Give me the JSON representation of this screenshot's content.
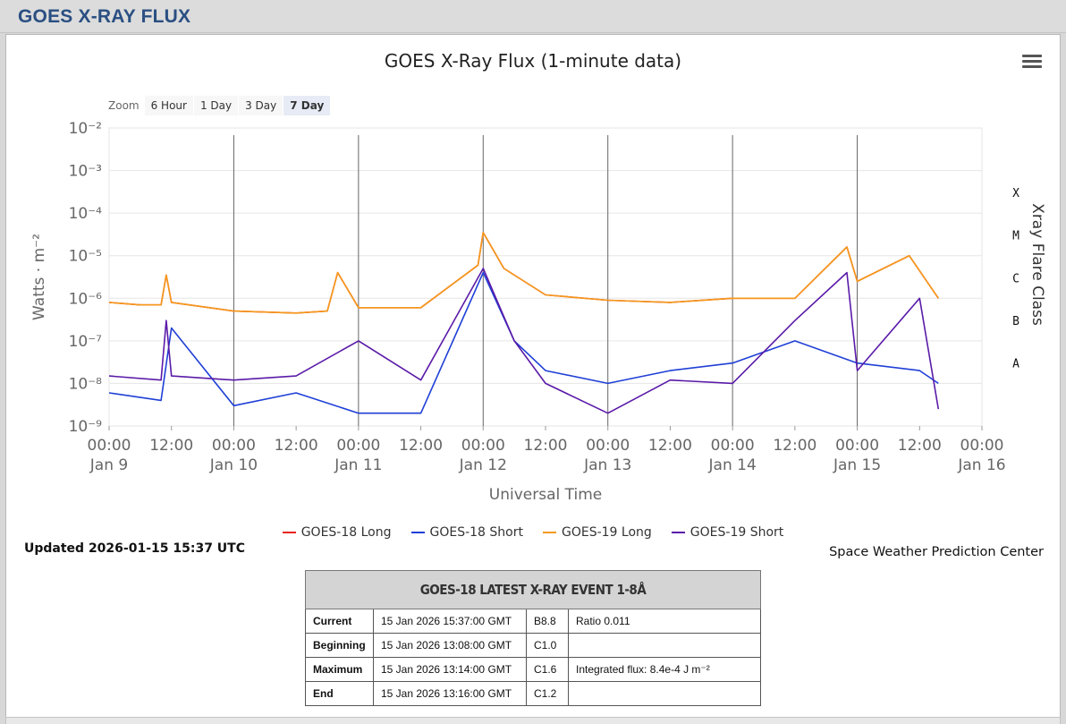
{
  "page": {
    "header_title": "GOES X-RAY FLUX"
  },
  "toolbar": {
    "zoom_label": "Zoom",
    "zoom_buttons": [
      "6 Hour",
      "1 Day",
      "3 Day",
      "7 Day"
    ],
    "selected": "7 Day"
  },
  "chart_data": {
    "type": "line",
    "title": "GOES X-Ray Flux (1-minute data)",
    "xlabel": "Universal Time",
    "ylabel": "Watts · m⁻²",
    "y2label": "Xray Flare Class",
    "yscale": "log",
    "ylim": [
      1e-09,
      0.01
    ],
    "xlim": [
      "2026-01-09 00:00",
      "2026-01-16 00:00"
    ],
    "y_ticks": [
      "10⁻²",
      "10⁻³",
      "10⁻⁴",
      "10⁻⁵",
      "10⁻⁶",
      "10⁻⁷",
      "10⁻⁸",
      "10⁻⁹"
    ],
    "x_ticks": [
      {
        "time": "00:00",
        "date": "Jan 9"
      },
      {
        "time": "12:00",
        "date": ""
      },
      {
        "time": "00:00",
        "date": "Jan 10"
      },
      {
        "time": "12:00",
        "date": ""
      },
      {
        "time": "00:00",
        "date": "Jan 11"
      },
      {
        "time": "12:00",
        "date": ""
      },
      {
        "time": "00:00",
        "date": "Jan 12"
      },
      {
        "time": "12:00",
        "date": ""
      },
      {
        "time": "00:00",
        "date": "Jan 13"
      },
      {
        "time": "12:00",
        "date": ""
      },
      {
        "time": "00:00",
        "date": "Jan 14"
      },
      {
        "time": "12:00",
        "date": ""
      },
      {
        "time": "00:00",
        "date": "Jan 15"
      },
      {
        "time": "12:00",
        "date": ""
      },
      {
        "time": "00:00",
        "date": "Jan 16"
      }
    ],
    "flare_classes": [
      {
        "label": "X",
        "value": 0.0001
      },
      {
        "label": "M",
        "value": 1e-05
      },
      {
        "label": "C",
        "value": 1e-06
      },
      {
        "label": "B",
        "value": 1e-07
      },
      {
        "label": "A",
        "value": 1e-08
      }
    ],
    "legend_position": "bottom",
    "series": [
      {
        "name": "GOES-18 Long",
        "color": "#e8231f",
        "x": [
          "2026-01-09 00:00",
          "2026-01-09 06:00",
          "2026-01-09 10:00",
          "2026-01-09 11:00",
          "2026-01-09 12:00",
          "2026-01-10 00:00",
          "2026-01-10 12:00",
          "2026-01-10 18:00",
          "2026-01-10 20:00",
          "2026-01-11 00:00",
          "2026-01-11 12:00",
          "2026-01-11 23:00",
          "2026-01-12 00:00",
          "2026-01-12 04:00",
          "2026-01-12 12:00",
          "2026-01-13 00:00",
          "2026-01-13 12:00",
          "2026-01-14 00:00",
          "2026-01-14 12:00",
          "2026-01-14 22:00",
          "2026-01-15 00:00",
          "2026-01-15 10:00",
          "2026-01-15 15:37"
        ],
        "y": [
          8e-07,
          7e-07,
          7e-07,
          3.5e-06,
          8e-07,
          5e-07,
          4.5e-07,
          5e-07,
          4e-06,
          6e-07,
          6e-07,
          6e-06,
          3.5e-05,
          5e-06,
          1.2e-06,
          9e-07,
          8e-07,
          1e-06,
          1e-06,
          1.6e-05,
          2.5e-06,
          1e-05,
          1e-06
        ]
      },
      {
        "name": "GOES-18 Short",
        "color": "#1f3fd6",
        "x": [
          "2026-01-09 00:00",
          "2026-01-09 10:00",
          "2026-01-09 12:00",
          "2026-01-10 00:00",
          "2026-01-10 12:00",
          "2026-01-11 00:00",
          "2026-01-11 12:00",
          "2026-01-12 00:00",
          "2026-01-12 06:00",
          "2026-01-12 12:00",
          "2026-01-13 00:00",
          "2026-01-13 12:00",
          "2026-01-14 00:00",
          "2026-01-14 12:00",
          "2026-01-15 00:00",
          "2026-01-15 12:00",
          "2026-01-15 15:37"
        ],
        "y": [
          6e-09,
          4e-09,
          2e-07,
          3e-09,
          6e-09,
          2e-09,
          2e-09,
          4e-06,
          1e-07,
          2e-08,
          1e-08,
          2e-08,
          3e-08,
          1e-07,
          3e-08,
          2e-08,
          1e-08
        ]
      },
      {
        "name": "GOES-19 Long",
        "color": "#f59a1b",
        "x": [
          "2026-01-09 00:00",
          "2026-01-09 06:00",
          "2026-01-09 10:00",
          "2026-01-09 11:00",
          "2026-01-09 12:00",
          "2026-01-10 00:00",
          "2026-01-10 12:00",
          "2026-01-10 18:00",
          "2026-01-10 20:00",
          "2026-01-11 00:00",
          "2026-01-11 12:00",
          "2026-01-11 23:00",
          "2026-01-12 00:00",
          "2026-01-12 04:00",
          "2026-01-12 12:00",
          "2026-01-13 00:00",
          "2026-01-13 12:00",
          "2026-01-14 00:00",
          "2026-01-14 12:00",
          "2026-01-14 22:00",
          "2026-01-15 00:00",
          "2026-01-15 10:00",
          "2026-01-15 15:37"
        ],
        "y": [
          8e-07,
          7e-07,
          7e-07,
          3.5e-06,
          8e-07,
          5e-07,
          4.5e-07,
          5e-07,
          4e-06,
          6e-07,
          6e-07,
          6e-06,
          3.5e-05,
          5e-06,
          1.2e-06,
          9e-07,
          8e-07,
          1e-06,
          1e-06,
          1.6e-05,
          2.5e-06,
          1e-05,
          1e-06
        ]
      },
      {
        "name": "GOES-19 Short",
        "color": "#5a1aa8",
        "x": [
          "2026-01-09 00:00",
          "2026-01-09 10:00",
          "2026-01-09 11:00",
          "2026-01-09 12:00",
          "2026-01-10 00:00",
          "2026-01-10 12:00",
          "2026-01-11 00:00",
          "2026-01-11 12:00",
          "2026-01-12 00:00",
          "2026-01-12 06:00",
          "2026-01-12 12:00",
          "2026-01-13 00:00",
          "2026-01-13 12:00",
          "2026-01-14 00:00",
          "2026-01-14 12:00",
          "2026-01-14 22:00",
          "2026-01-15 00:00",
          "2026-01-15 12:00",
          "2026-01-15 15:37"
        ],
        "y": [
          1.5e-08,
          1.2e-08,
          3e-07,
          1.5e-08,
          1.2e-08,
          1.5e-08,
          1e-07,
          1.2e-08,
          5e-06,
          1e-07,
          1e-08,
          2e-09,
          1.2e-08,
          1e-08,
          3e-07,
          4e-06,
          2e-08,
          1e-06,
          2.5e-09
        ]
      }
    ]
  },
  "status": {
    "updated": "Updated 2026-01-15 15:37 UTC",
    "credit": "Space Weather Prediction Center"
  },
  "event_table": {
    "title": "GOES-18 LATEST X-RAY EVENT 1-8Å",
    "rows": [
      {
        "label": "Current",
        "time": "15 Jan 2026 15:37:00 GMT",
        "class": "B8.8",
        "note": "Ratio 0.011"
      },
      {
        "label": "Beginning",
        "time": "15 Jan 2026 13:08:00 GMT",
        "class": "C1.0",
        "note": ""
      },
      {
        "label": "Maximum",
        "time": "15 Jan 2026 13:14:00 GMT",
        "class": "C1.6",
        "note": "Integrated flux: 8.4e-4 J m⁻²"
      },
      {
        "label": "End",
        "time": "15 Jan 2026 13:16:00 GMT",
        "class": "C1.2",
        "note": ""
      }
    ]
  }
}
